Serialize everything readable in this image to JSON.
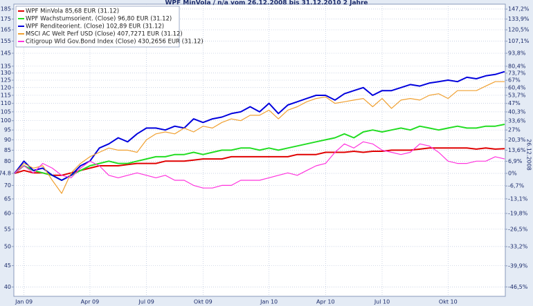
{
  "chart_data": {
    "type": "line",
    "title": "WPF MinVola / n/a vom 26.12.2008 bis 31.12.2010 2 Jahre",
    "side_label": "26.12.2008",
    "categories": [
      null,
      "Jan 09",
      null,
      null,
      null,
      null,
      null,
      null,
      "Apr 09",
      null,
      null,
      null,
      null,
      null,
      "Jul 09",
      null,
      null,
      null,
      null,
      null,
      "Okt 09",
      null,
      null,
      null,
      null,
      null,
      null,
      "Jan 10",
      null,
      null,
      null,
      null,
      null,
      "Apr 10",
      null,
      null,
      null,
      null,
      null,
      "Jul 10",
      null,
      null,
      null,
      null,
      null,
      null,
      "Okt 10",
      null,
      null,
      null,
      null,
      null,
      null
    ],
    "series": [
      {
        "name": "WPF MinVola 85,68 EUR (31.12)",
        "color": "#e00000",
        "values": [
          74.8,
          76,
          75,
          75,
          74,
          74,
          75,
          76,
          77,
          78,
          78,
          78,
          78.5,
          79,
          79,
          79,
          80,
          80,
          80,
          80.5,
          81,
          81,
          81,
          82,
          82,
          82,
          82,
          82,
          82,
          82,
          83,
          83,
          83,
          84,
          84,
          84,
          84.5,
          84,
          84.5,
          84.5,
          85,
          85,
          85,
          85.5,
          86,
          86,
          86,
          86,
          86,
          85.5,
          86,
          85.5,
          85.7
        ]
      },
      {
        "name": "WPF Wachstumsorient. (Close) 96,80 EUR (31.12)",
        "color": "#22dd22",
        "values": [
          74.8,
          78,
          76,
          75,
          74,
          72,
          74,
          76,
          78,
          79,
          80,
          79,
          79,
          80,
          81,
          82,
          82,
          83,
          83,
          84,
          83,
          84,
          85,
          85,
          86,
          86,
          85,
          86,
          85,
          86,
          87,
          88,
          89,
          90,
          91,
          93,
          91,
          94,
          95,
          94,
          95,
          96,
          95,
          97,
          96,
          95,
          96,
          97,
          96,
          96,
          97,
          97,
          98
        ]
      },
      {
        "name": "WPF Renditeorient. (Close) 102,89 EUR (31.12)",
        "color": "#0000dd",
        "values": [
          74.8,
          80,
          76,
          77,
          74,
          72,
          74,
          78,
          80,
          86,
          88,
          91,
          89,
          93,
          96,
          96,
          95,
          97,
          96,
          101,
          99,
          101,
          102,
          104,
          105,
          108,
          105,
          110,
          104,
          109,
          111,
          113,
          115,
          115,
          112,
          116,
          118,
          120,
          115,
          118,
          118,
          120,
          122,
          121,
          123,
          124,
          125,
          124,
          127,
          126,
          128,
          129,
          131
        ]
      },
      {
        "name": "MSCI AC Welt Perf USD (Close) 407,7271 EUR (31.12)",
        "color": "#f0a030",
        "values": [
          74.8,
          79,
          77,
          78,
          72,
          67,
          75,
          79,
          82,
          84,
          86,
          85,
          85,
          84,
          90,
          93,
          94,
          93,
          96,
          94,
          97,
          96,
          99,
          101,
          100,
          103,
          103,
          106,
          101,
          106,
          108,
          111,
          113,
          114,
          110,
          111,
          112,
          113,
          108,
          113,
          107,
          112,
          113,
          112,
          115,
          116,
          113,
          118,
          118,
          118,
          121,
          124,
          124
        ]
      },
      {
        "name": "Citigroup Wld Gov.Bond Index (Close) 430,2656 EUR (31.12)",
        "color": "#ff33dd",
        "values": [
          74.8,
          78,
          75,
          79,
          77,
          74,
          73,
          77,
          80,
          78,
          74,
          73,
          74,
          75,
          74,
          73,
          74,
          72,
          72,
          70,
          69,
          69,
          70,
          70,
          72,
          72,
          72,
          73,
          74,
          75,
          74,
          76,
          78,
          79,
          84,
          88,
          86,
          89,
          88,
          85,
          84,
          83,
          84,
          88,
          87,
          84,
          80,
          79,
          79,
          80,
          80,
          82,
          81
        ]
      }
    ],
    "ylim": [
      38,
      190
    ],
    "log_scale": true,
    "yticks": [
      185,
      175,
      165,
      155,
      145,
      135,
      130,
      125,
      120,
      115,
      110,
      105,
      100,
      95,
      90,
      85,
      80,
      74.8,
      70,
      65,
      60,
      55,
      50,
      45,
      40
    ],
    "y2lim": [
      -49.2,
      154
    ],
    "y2ticks": [
      {
        "value": 147.2,
        "label": "147,2%"
      },
      {
        "value": 133.9,
        "label": "133,9%"
      },
      {
        "value": 120.5,
        "label": "120,5%"
      },
      {
        "value": 107.1,
        "label": "107,1%"
      },
      {
        "value": 93.8,
        "label": "93,8%"
      },
      {
        "value": 80.4,
        "label": "80,4%"
      },
      {
        "value": 73.7,
        "label": "73,7%"
      },
      {
        "value": 67,
        "label": "67%"
      },
      {
        "value": 60.4,
        "label": "60,4%"
      },
      {
        "value": 53.7,
        "label": "53,7%"
      },
      {
        "value": 47,
        "label": "47%"
      },
      {
        "value": 40.3,
        "label": "40,3%"
      },
      {
        "value": 33.6,
        "label": "33,6%"
      },
      {
        "value": 27,
        "label": "27%"
      },
      {
        "value": 20.3,
        "label": "20,3%"
      },
      {
        "value": 13.6,
        "label": "13,6%"
      },
      {
        "value": 6.9,
        "label": "6,9%"
      },
      {
        "value": 0,
        "label": "0%"
      },
      {
        "value": -6.7,
        "label": "-6,7%"
      },
      {
        "value": -13.1,
        "label": "-13,1%"
      },
      {
        "value": -19.8,
        "label": "-19,8%"
      },
      {
        "value": -26.5,
        "label": "-26,5%"
      },
      {
        "value": -33.2,
        "label": "-33,2%"
      },
      {
        "value": -39.9,
        "label": "-39,9%"
      },
      {
        "value": -46.5,
        "label": "-46,5%"
      }
    ],
    "grid": true,
    "legend": "top-left"
  }
}
